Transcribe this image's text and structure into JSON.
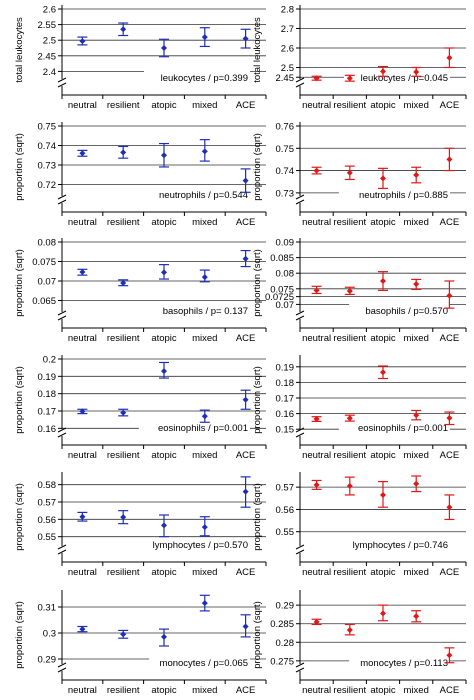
{
  "colors": {
    "left": "#1f2fb5",
    "right": "#e01818",
    "axis": "#000000",
    "grid": "#000000"
  },
  "categories": [
    "neutral",
    "resilient",
    "atopic",
    "mixed",
    "ACE"
  ],
  "chart_data": [
    {
      "type": "scatter",
      "panel": "leukocytes-left",
      "ylabel": "total leukocytes",
      "annotation": "leukocytes / p=0.399",
      "ylim": [
        2.35,
        2.6
      ],
      "ticks": [
        "2.6",
        "2.55",
        "2.5",
        "2.45",
        "2.4"
      ],
      "tick_values": [
        2.6,
        2.55,
        2.5,
        2.45,
        2.4
      ],
      "axis_break": true,
      "color": "left",
      "points": [
        {
          "y": 2.497,
          "lo": 2.485,
          "hi": 2.51
        },
        {
          "y": 2.535,
          "lo": 2.515,
          "hi": 2.555
        },
        {
          "y": 2.475,
          "lo": 2.447,
          "hi": 2.503
        },
        {
          "y": 2.51,
          "lo": 2.48,
          "hi": 2.54
        },
        {
          "y": 2.505,
          "lo": 2.475,
          "hi": 2.535
        }
      ]
    },
    {
      "type": "scatter",
      "panel": "leukocytes-right",
      "ylabel": "total leukocytes",
      "annotation": "leukocytes / p=0.045",
      "ylim": [
        2.4,
        2.8
      ],
      "ticks": [
        "2.8",
        "2.7",
        "2.6",
        "2.5",
        "2.45"
      ],
      "tick_values": [
        2.8,
        2.7,
        2.6,
        2.5,
        2.45
      ],
      "axis_break": true,
      "color": "right",
      "points": [
        {
          "y": 2.445,
          "lo": 2.435,
          "hi": 2.455
        },
        {
          "y": 2.445,
          "lo": 2.43,
          "hi": 2.46
        },
        {
          "y": 2.48,
          "lo": 2.455,
          "hi": 2.505
        },
        {
          "y": 2.477,
          "lo": 2.455,
          "hi": 2.5
        },
        {
          "y": 2.55,
          "lo": 2.5,
          "hi": 2.6
        }
      ]
    },
    {
      "type": "scatter",
      "panel": "neutrophils-left",
      "ylabel": "proportion (sqrt)",
      "annotation": "neutrophils / p=0.544",
      "ylim": [
        0.71,
        0.75
      ],
      "ticks": [
        "0.75",
        "0.74",
        "0.73",
        "0.72"
      ],
      "tick_values": [
        0.75,
        0.74,
        0.73,
        0.72
      ],
      "axis_break": true,
      "color": "left",
      "points": [
        {
          "y": 0.736,
          "lo": 0.7345,
          "hi": 0.7375
        },
        {
          "y": 0.7365,
          "lo": 0.7335,
          "hi": 0.7395
        },
        {
          "y": 0.735,
          "lo": 0.729,
          "hi": 0.741
        },
        {
          "y": 0.737,
          "lo": 0.732,
          "hi": 0.743
        },
        {
          "y": 0.722,
          "lo": 0.716,
          "hi": 0.728
        }
      ]
    },
    {
      "type": "scatter",
      "panel": "neutrophils-right",
      "ylabel": "proportion (sqrt)",
      "annotation": "neutrophils / p=0.885",
      "ylim": [
        0.725,
        0.76
      ],
      "ticks": [
        "0.76",
        "0.75",
        "0.74",
        "0.73"
      ],
      "tick_values": [
        0.76,
        0.75,
        0.74,
        0.73
      ],
      "axis_break": true,
      "color": "right",
      "points": [
        {
          "y": 0.74,
          "lo": 0.7385,
          "hi": 0.7415
        },
        {
          "y": 0.739,
          "lo": 0.736,
          "hi": 0.742
        },
        {
          "y": 0.7365,
          "lo": 0.732,
          "hi": 0.741
        },
        {
          "y": 0.738,
          "lo": 0.7345,
          "hi": 0.7415
        },
        {
          "y": 0.745,
          "lo": 0.74,
          "hi": 0.75
        }
      ]
    },
    {
      "type": "scatter",
      "panel": "basophils-left",
      "ylabel": "proportion (sqrt)",
      "annotation": "basophils / p= 0.137",
      "ylim": [
        0.06,
        0.08
      ],
      "ticks": [
        "0.08",
        "0.075",
        "0.07",
        "0.065"
      ],
      "tick_values": [
        0.08,
        0.075,
        0.07,
        0.065
      ],
      "axis_break": true,
      "color": "left",
      "points": [
        {
          "y": 0.0723,
          "lo": 0.0715,
          "hi": 0.073
        },
        {
          "y": 0.0695,
          "lo": 0.0688,
          "hi": 0.0703
        },
        {
          "y": 0.0722,
          "lo": 0.0705,
          "hi": 0.0742
        },
        {
          "y": 0.071,
          "lo": 0.0698,
          "hi": 0.0728
        },
        {
          "y": 0.0757,
          "lo": 0.0737,
          "hi": 0.0778
        }
      ]
    },
    {
      "type": "scatter",
      "panel": "basophils-right",
      "ylabel": "proportion (sqrt)",
      "annotation": "basophils / p=0.570",
      "ylim": [
        0.065,
        0.09
      ],
      "ticks": [
        "0.09",
        "0.085",
        "0.08",
        "0.075",
        "0.0725",
        "0.07"
      ],
      "tick_values": [
        0.09,
        0.085,
        0.08,
        0.075,
        0.0725,
        0.07
      ],
      "axis_break": true,
      "color": "right",
      "points": [
        {
          "y": 0.0745,
          "lo": 0.0735,
          "hi": 0.0758
        },
        {
          "y": 0.0743,
          "lo": 0.0732,
          "hi": 0.0755
        },
        {
          "y": 0.0775,
          "lo": 0.0745,
          "hi": 0.0805
        },
        {
          "y": 0.0765,
          "lo": 0.0748,
          "hi": 0.078
        },
        {
          "y": 0.0728,
          "lo": 0.0688,
          "hi": 0.0775
        }
      ]
    },
    {
      "type": "scatter",
      "panel": "eosinophils-left",
      "ylabel": "proportion (sqrt)",
      "annotation": "eosinophils / p=0.001",
      "ylim": [
        0.155,
        0.2
      ],
      "ticks": [
        "0.2",
        "0.19",
        "0.18",
        "0.17",
        "0.16"
      ],
      "tick_values": [
        0.2,
        0.19,
        0.18,
        0.17,
        0.16
      ],
      "axis_break": true,
      "color": "left",
      "points": [
        {
          "y": 0.1698,
          "lo": 0.1685,
          "hi": 0.171
        },
        {
          "y": 0.169,
          "lo": 0.1672,
          "hi": 0.171
        },
        {
          "y": 0.193,
          "lo": 0.189,
          "hi": 0.198
        },
        {
          "y": 0.167,
          "lo": 0.1635,
          "hi": 0.1705
        },
        {
          "y": 0.1765,
          "lo": 0.171,
          "hi": 0.182
        }
      ]
    },
    {
      "type": "scatter",
      "panel": "eosinophils-right",
      "ylabel": "proportion (sqrt)",
      "annotation": "eosinophils / p=0.001",
      "ylim": [
        0.145,
        0.195
      ],
      "ticks": [
        "0.19",
        "0.18",
        "0.17",
        "0.16",
        "0.15"
      ],
      "tick_values": [
        0.19,
        0.18,
        0.17,
        0.16,
        0.15
      ],
      "axis_break": true,
      "color": "right",
      "points": [
        {
          "y": 0.1565,
          "lo": 0.155,
          "hi": 0.158
        },
        {
          "y": 0.157,
          "lo": 0.1552,
          "hi": 0.159
        },
        {
          "y": 0.1865,
          "lo": 0.1825,
          "hi": 0.1905
        },
        {
          "y": 0.159,
          "lo": 0.156,
          "hi": 0.162
        },
        {
          "y": 0.1572,
          "lo": 0.153,
          "hi": 0.161
        }
      ]
    },
    {
      "type": "scatter",
      "panel": "lymphocytes-left",
      "ylabel": "proportion (sqrt)",
      "annotation": "lymphocytes / p=0.570",
      "ylim": [
        0.54,
        0.585
      ],
      "ticks": [
        "0.58",
        "0.57",
        "0.56",
        "0.55"
      ],
      "tick_values": [
        0.58,
        0.57,
        0.56,
        0.55
      ],
      "axis_break": true,
      "color": "left",
      "points": [
        {
          "y": 0.5615,
          "lo": 0.559,
          "hi": 0.564
        },
        {
          "y": 0.5613,
          "lo": 0.5575,
          "hi": 0.565
        },
        {
          "y": 0.5565,
          "lo": 0.55,
          "hi": 0.5625
        },
        {
          "y": 0.5555,
          "lo": 0.5505,
          "hi": 0.5615
        },
        {
          "y": 0.576,
          "lo": 0.567,
          "hi": 0.5845
        }
      ]
    },
    {
      "type": "scatter",
      "panel": "lymphocytes-right",
      "ylabel": "proportion (sqrt)",
      "annotation": "lymphocytes / p=0.746",
      "ylim": [
        0.54,
        0.575
      ],
      "ticks": [
        "0.57",
        "0.56",
        "0.55"
      ],
      "tick_values": [
        0.57,
        0.56,
        0.55
      ],
      "axis_break": true,
      "color": "right",
      "points": [
        {
          "y": 0.571,
          "lo": 0.569,
          "hi": 0.573
        },
        {
          "y": 0.5705,
          "lo": 0.5665,
          "hi": 0.5745
        },
        {
          "y": 0.5665,
          "lo": 0.561,
          "hi": 0.5725
        },
        {
          "y": 0.5715,
          "lo": 0.568,
          "hi": 0.575
        },
        {
          "y": 0.561,
          "lo": 0.5555,
          "hi": 0.5665
        }
      ]
    },
    {
      "type": "scatter",
      "panel": "monocytes-left",
      "ylabel": "proportion (sqrt)",
      "annotation": "monocytes / p=0.065",
      "ylim": [
        0.285,
        0.315
      ],
      "ticks": [
        "0.31",
        "0.3",
        "0.29"
      ],
      "tick_values": [
        0.31,
        0.3,
        0.29
      ],
      "axis_break": true,
      "color": "left",
      "points": [
        {
          "y": 0.3015,
          "lo": 0.3005,
          "hi": 0.3025
        },
        {
          "y": 0.2995,
          "lo": 0.298,
          "hi": 0.301
        },
        {
          "y": 0.2985,
          "lo": 0.295,
          "hi": 0.3015
        },
        {
          "y": 0.3115,
          "lo": 0.3085,
          "hi": 0.3145
        },
        {
          "y": 0.3025,
          "lo": 0.2985,
          "hi": 0.307
        }
      ]
    },
    {
      "type": "scatter",
      "panel": "monocytes-right",
      "ylabel": "proportion (sqrt)",
      "annotation": "monocytes / p=0.113",
      "ylim": [
        0.272,
        0.293
      ],
      "ticks": [
        "0.29",
        "0.285",
        "0.28",
        "0.275"
      ],
      "tick_values": [
        0.29,
        0.285,
        0.28,
        0.275
      ],
      "axis_break": true,
      "color": "right",
      "points": [
        {
          "y": 0.2855,
          "lo": 0.2848,
          "hi": 0.2862
        },
        {
          "y": 0.2833,
          "lo": 0.282,
          "hi": 0.2848
        },
        {
          "y": 0.2878,
          "lo": 0.2858,
          "hi": 0.29
        },
        {
          "y": 0.287,
          "lo": 0.2855,
          "hi": 0.2885
        },
        {
          "y": 0.2765,
          "lo": 0.2745,
          "hi": 0.2785
        }
      ]
    }
  ]
}
